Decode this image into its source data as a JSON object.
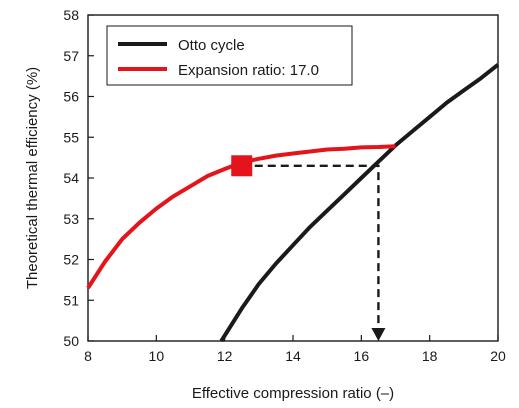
{
  "chart_data": {
    "type": "line",
    "title": "",
    "xlabel": "Effective compression ratio (–)",
    "ylabel": "Theoretical thermal efficiency (%)",
    "xlim": [
      8,
      20
    ],
    "ylim": [
      50,
      58
    ],
    "xticks": [
      8,
      10,
      12,
      14,
      16,
      18,
      20
    ],
    "yticks": [
      50,
      51,
      52,
      53,
      54,
      55,
      56,
      57,
      58
    ],
    "grid": false,
    "legend_position": "top-left",
    "series": [
      {
        "name": "Otto cycle",
        "color": "#1a1a1a",
        "x": [
          11.9,
          12.5,
          13.0,
          13.5,
          14.0,
          14.5,
          15.0,
          15.5,
          16.0,
          16.5,
          17.0,
          17.5,
          18.0,
          18.5,
          19.0,
          19.5,
          20.0
        ],
        "y": [
          50.0,
          50.8,
          51.4,
          51.9,
          52.35,
          52.8,
          53.2,
          53.6,
          54.0,
          54.4,
          54.8,
          55.15,
          55.5,
          55.85,
          56.15,
          56.45,
          56.78
        ]
      },
      {
        "name": "Expansion ratio: 17.0",
        "color": "#e3141b",
        "x": [
          8.0,
          8.5,
          9.0,
          9.5,
          10.0,
          10.5,
          11.0,
          11.5,
          12.0,
          12.5,
          13.0,
          13.5,
          14.0,
          14.5,
          15.0,
          15.5,
          16.0,
          16.5,
          17.0
        ],
        "y": [
          51.3,
          51.95,
          52.5,
          52.9,
          53.25,
          53.55,
          53.8,
          54.05,
          54.22,
          54.38,
          54.47,
          54.55,
          54.6,
          54.65,
          54.7,
          54.72,
          54.75,
          54.76,
          54.78
        ]
      }
    ],
    "annotations": {
      "marker": {
        "x": 12.5,
        "y": 54.3,
        "shape": "square",
        "color": "#e3141b"
      },
      "dashed_arrow_path": [
        [
          12.5,
          54.3
        ],
        [
          16.5,
          54.3
        ],
        [
          16.5,
          50.0
        ]
      ],
      "arrow_color": "#1a1a1a"
    }
  }
}
